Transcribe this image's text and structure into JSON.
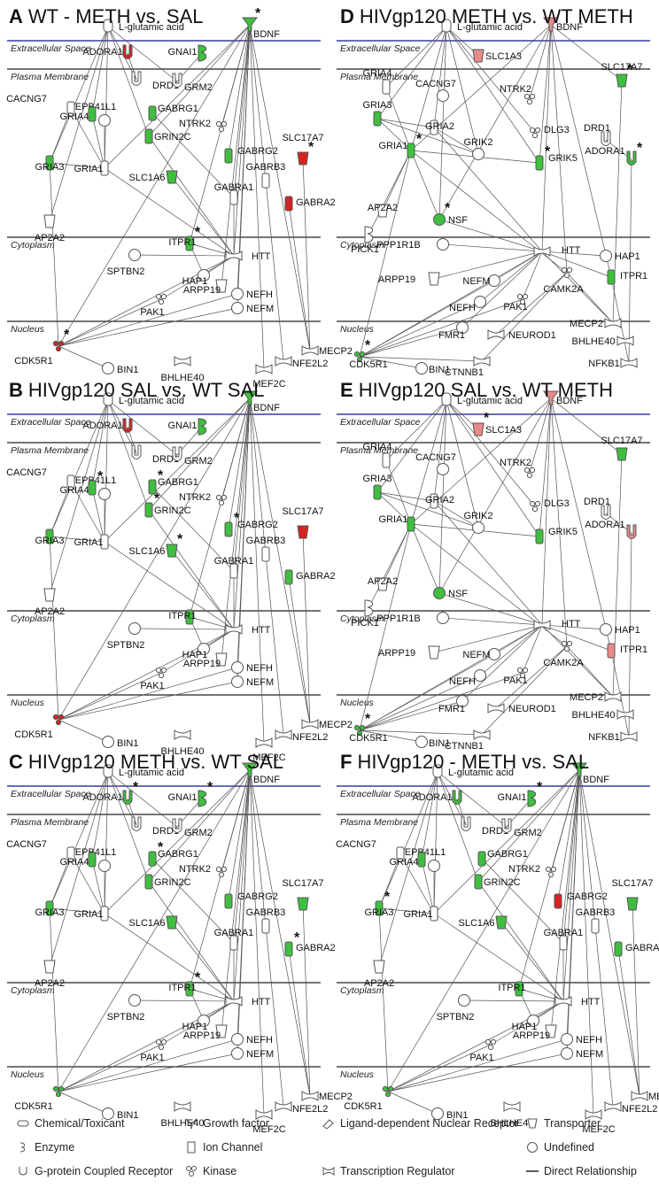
{
  "panels": [
    {
      "letter": "A",
      "title": "WT - METH vs. SAL",
      "nodes": {
        "BDNF": {
          "c": "green",
          "star": true
        },
        "ADORA1": {
          "c": "red"
        },
        "GNAI1": {
          "c": "green"
        },
        "CDK5R1": {
          "c": "red",
          "star": true
        },
        "GRIA3": {
          "c": "green"
        },
        "GRIA4": {
          "c": "green"
        },
        "GRIN2C": {
          "c": "green"
        },
        "GABRG1": {
          "c": "green"
        },
        "GABRG2": {
          "c": "green"
        },
        "SLC1A6": {
          "c": "green"
        },
        "SLC17A7": {
          "c": "red",
          "star": true
        },
        "GABRA2": {
          "c": "red"
        },
        "ITPR1": {
          "c": "green",
          "star": true
        }
      }
    },
    {
      "letter": "B",
      "title": "HIVgp120 SAL vs. WT SAL",
      "nodes": {
        "BDNF": {
          "c": "green"
        },
        "ADORA1": {
          "c": "red"
        },
        "GNAI1": {
          "c": "green"
        },
        "CDK5R1": {
          "c": "red"
        },
        "GRIA3": {
          "c": "green"
        },
        "GRIA4": {
          "c": "green",
          "star": true
        },
        "GRIN2C": {
          "c": "green",
          "star": true
        },
        "GABRG1": {
          "c": "green",
          "star": true
        },
        "GABRG2": {
          "c": "green",
          "star": true
        },
        "SLC1A6": {
          "c": "green",
          "star": true
        },
        "SLC17A7": {
          "c": "red"
        },
        "GABRA2": {
          "c": "green"
        },
        "ITPR1": {
          "c": "green"
        }
      }
    },
    {
      "letter": "C",
      "title": "HIVgp120 METH vs. WT SAL",
      "nodes": {
        "BDNF": {
          "c": "green"
        },
        "ADORA1": {
          "c": "green",
          "star": true
        },
        "GNAI1": {
          "c": "green",
          "star": true
        },
        "CDK5R1": {
          "c": "green"
        },
        "GRIA3": {
          "c": "green"
        },
        "GRIA4": {
          "c": "green"
        },
        "GRIN2C": {
          "c": "green"
        },
        "GABRG1": {
          "c": "green",
          "star": true
        },
        "GABRG2": {
          "c": "green"
        },
        "SLC1A6": {
          "c": "green"
        },
        "SLC17A7": {
          "c": "green"
        },
        "GABRA2": {
          "c": "green",
          "star": true
        },
        "ITPR1": {
          "c": "green",
          "star": true
        }
      }
    },
    {
      "letter": "D",
      "title": "HIVgp120 METH vs. WT METH",
      "nodes": {
        "BDNF": {
          "c": "pink"
        },
        "SLC1A3": {
          "c": "pink"
        },
        "SLC17A7": {
          "c": "green",
          "star": true
        },
        "GRIA3": {
          "c": "green"
        },
        "GRIA1": {
          "c": "green",
          "star": true
        },
        "GRIK5": {
          "c": "green",
          "star": true
        },
        "ADORA1": {
          "c": "green",
          "star": true
        },
        "NSF": {
          "c": "green",
          "star": true
        },
        "ITPR1": {
          "c": "green"
        },
        "CDK5R1": {
          "c": "green",
          "star": true
        }
      }
    },
    {
      "letter": "E",
      "title": "HIVgp120 SAL vs. WT METH",
      "nodes": {
        "BDNF": {
          "c": "pink"
        },
        "SLC1A3": {
          "c": "pink",
          "star": true
        },
        "SLC17A7": {
          "c": "green"
        },
        "GRIA3": {
          "c": "green"
        },
        "GRIA1": {
          "c": "green"
        },
        "GRIK5": {
          "c": "green"
        },
        "ADORA1": {
          "c": "pink"
        },
        "NSF": {
          "c": "green"
        },
        "ITPR1": {
          "c": "pink"
        },
        "CDK5R1": {
          "c": "green",
          "star": true
        }
      }
    },
    {
      "letter": "F",
      "title": "HIVgp120 - METH vs. SAL",
      "nodes": {
        "BDNF": {
          "c": "green"
        },
        "ADORA1": {
          "c": "green"
        },
        "GNAI1": {
          "c": "green",
          "star": true
        },
        "CDK5R1": {
          "c": "green"
        },
        "GRIA3": {
          "c": "green",
          "star": true
        },
        "GRIA4": {
          "c": "green"
        },
        "GRIN2C": {
          "c": "green"
        },
        "GABRG1": {
          "c": "green"
        },
        "GABRG2": {
          "c": "red"
        },
        "SLC1A6": {
          "c": "green"
        },
        "SLC17A7": {
          "c": "green"
        },
        "GABRA2": {
          "c": "green"
        },
        "ITPR1": {
          "c": "green"
        }
      }
    }
  ],
  "compartments": [
    "Extracellular Space",
    "Plasma Membrane",
    "Cytoplasm",
    "Nucleus"
  ],
  "left_network": {
    "labels": [
      "L-glutamic acid",
      "BDNF",
      "ADORA1",
      "GNAI1",
      "DRD1",
      "GRM2",
      "CACNG7",
      "EPB41L1",
      "GRIA4",
      "GABRG1",
      "GRIN2C",
      "NTRK2",
      "GABRG2",
      "SLC17A7",
      "GRIA3",
      "GRIA1",
      "SLC1A6",
      "GABRB3",
      "GABRA1",
      "GABRA2",
      "AP2A2",
      "ITPR1",
      "SPTBN2",
      "HTT",
      "HAP1",
      "ARPP19",
      "NEFH",
      "PAK1",
      "NEFM",
      "CDK5R1",
      "BIN1",
      "BHLHE40",
      "MEF2C",
      "NFE2L2",
      "MECP2"
    ]
  },
  "right_network": {
    "labels": [
      "L-glutamic acid",
      "BDNF",
      "SLC1A3",
      "GRIA4",
      "CACNG7",
      "NTRK2",
      "SLC17A7",
      "GRIA3",
      "GRIA2",
      "DLG3",
      "DRD1",
      "GRIA1",
      "GRIK2",
      "GRIK5",
      "ADORA1",
      "AP2A2",
      "NSF",
      "PICK1",
      "PPP1R1B",
      "HTT",
      "HAP1",
      "CAMK2A",
      "ARPP19",
      "NEFM",
      "NEFH",
      "PAK1",
      "ITPR1",
      "MECP2",
      "BHLHE40",
      "FMR1",
      "NEUROD1",
      "CTNNB1",
      "NFKB1",
      "CDK5R1",
      "BIN1"
    ]
  },
  "colors": {
    "green": "#3fbf3f",
    "red": "#d62222",
    "pink": "#e98a8a",
    "white": "#ffffff",
    "line": "#555555",
    "band": "#3a3aa0"
  },
  "legend": {
    "items": [
      {
        "icon": "chemical-toxicant-icon",
        "label": "Chemical/Toxicant"
      },
      {
        "icon": "enzyme-icon",
        "label": "Enzyme"
      },
      {
        "icon": "gpcr-icon",
        "label": "G-protein Coupled Receptor"
      },
      {
        "icon": "growth-factor-icon",
        "label": "Growth factor"
      },
      {
        "icon": "ion-channel-icon",
        "label": "Ion Channel"
      },
      {
        "icon": "kinase-icon",
        "label": "Kinase"
      },
      {
        "icon": "nuclear-receptor-icon",
        "label": "Ligand-dependent Nuclear Receptor"
      },
      {
        "icon": "transcription-regulator-icon",
        "label": "Transcription Regulator"
      },
      {
        "icon": "transporter-icon",
        "label": "Transporter"
      },
      {
        "icon": "undefined-icon",
        "label": "Undefined"
      },
      {
        "icon": "direct-relationship-icon",
        "label": "Direct Relationship"
      }
    ]
  }
}
